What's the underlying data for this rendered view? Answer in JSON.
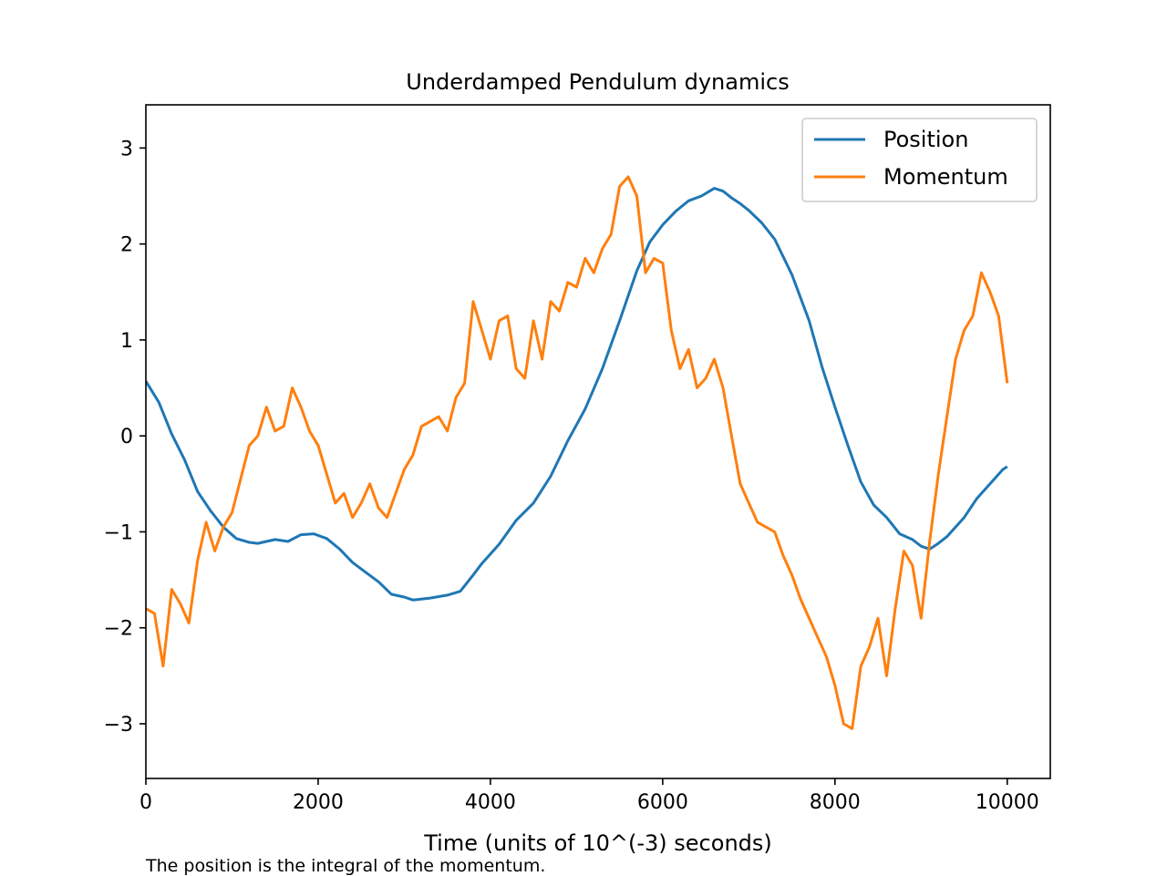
{
  "caption": "The position is the integral of the momentum.",
  "chart_data": {
    "type": "line",
    "title": "Underdamped Pendulum dynamics",
    "xlabel": "Time (units of 10^(-3) seconds)",
    "ylabel": "",
    "xlim": [
      0,
      10500
    ],
    "ylim": [
      -3.57,
      3.45
    ],
    "xticks": [
      0,
      2000,
      4000,
      6000,
      8000,
      10000
    ],
    "xtick_labels": [
      "0",
      "2000",
      "4000",
      "6000",
      "8000",
      "10000"
    ],
    "yticks": [
      -3,
      -2,
      -1,
      0,
      1,
      2,
      3
    ],
    "ytick_labels": [
      "−3",
      "−2",
      "−1",
      "0",
      "1",
      "2",
      "3"
    ],
    "grid": false,
    "legend_position": "top-right",
    "series": [
      {
        "name": "Position",
        "color": "#1f77b4",
        "x": [
          0,
          150,
          300,
          450,
          600,
          750,
          900,
          1050,
          1200,
          1300,
          1500,
          1650,
          1800,
          1950,
          2100,
          2250,
          2400,
          2550,
          2700,
          2850,
          3000,
          3100,
          3300,
          3500,
          3650,
          3800,
          3900,
          4100,
          4300,
          4500,
          4700,
          4900,
          5100,
          5300,
          5500,
          5700,
          5850,
          6000,
          6150,
          6300,
          6450,
          6600,
          6700,
          6800,
          6900,
          7000,
          7150,
          7300,
          7500,
          7700,
          7850,
          8000,
          8150,
          8300,
          8450,
          8600,
          8750,
          8900,
          9000,
          9100,
          9200,
          9300,
          9500,
          9650,
          9800,
          9950,
          10000
        ],
        "y": [
          0.57,
          0.35,
          0.02,
          -0.25,
          -0.58,
          -0.78,
          -0.95,
          -1.07,
          -1.11,
          -1.12,
          -1.08,
          -1.1,
          -1.03,
          -1.02,
          -1.07,
          -1.18,
          -1.32,
          -1.42,
          -1.52,
          -1.65,
          -1.68,
          -1.71,
          -1.69,
          -1.66,
          -1.62,
          -1.45,
          -1.33,
          -1.13,
          -0.88,
          -0.7,
          -0.42,
          -0.05,
          0.28,
          0.7,
          1.2,
          1.72,
          2.02,
          2.2,
          2.34,
          2.45,
          2.5,
          2.58,
          2.55,
          2.48,
          2.42,
          2.35,
          2.22,
          2.05,
          1.68,
          1.2,
          0.72,
          0.3,
          -0.1,
          -0.48,
          -0.72,
          -0.85,
          -1.02,
          -1.08,
          -1.15,
          -1.18,
          -1.12,
          -1.05,
          -0.85,
          -0.65,
          -0.5,
          -0.35,
          -0.32
        ]
      },
      {
        "name": "Momentum",
        "color": "#ff7f0e",
        "x": [
          0,
          100,
          200,
          300,
          400,
          500,
          600,
          700,
          800,
          900,
          1000,
          1100,
          1200,
          1300,
          1400,
          1500,
          1600,
          1700,
          1800,
          1900,
          2000,
          2100,
          2200,
          2300,
          2400,
          2500,
          2600,
          2700,
          2800,
          2900,
          3000,
          3100,
          3200,
          3300,
          3400,
          3500,
          3600,
          3700,
          3800,
          3900,
          4000,
          4100,
          4200,
          4300,
          4400,
          4500,
          4600,
          4700,
          4800,
          4900,
          5000,
          5100,
          5200,
          5300,
          5400,
          5500,
          5600,
          5700,
          5800,
          5900,
          6000,
          6100,
          6200,
          6300,
          6400,
          6500,
          6600,
          6700,
          6800,
          6900,
          7000,
          7100,
          7200,
          7300,
          7400,
          7500,
          7600,
          7700,
          7800,
          7900,
          8000,
          8100,
          8200,
          8300,
          8400,
          8500,
          8600,
          8700,
          8800,
          8900,
          9000,
          9100,
          9200,
          9300,
          9400,
          9500,
          9600,
          9700,
          9800,
          9900,
          10000
        ],
        "y": [
          -1.8,
          -1.85,
          -2.4,
          -1.6,
          -1.75,
          -1.95,
          -1.3,
          -0.9,
          -1.2,
          -0.95,
          -0.8,
          -0.45,
          -0.1,
          0.0,
          0.3,
          0.05,
          0.1,
          0.5,
          0.3,
          0.05,
          -0.1,
          -0.4,
          -0.7,
          -0.6,
          -0.85,
          -0.7,
          -0.5,
          -0.75,
          -0.85,
          -0.6,
          -0.35,
          -0.2,
          0.1,
          0.15,
          0.2,
          0.05,
          0.4,
          0.55,
          1.4,
          1.1,
          0.8,
          1.2,
          1.25,
          0.7,
          0.6,
          1.2,
          0.8,
          1.4,
          1.3,
          1.6,
          1.55,
          1.85,
          1.7,
          1.95,
          2.1,
          2.6,
          2.7,
          2.5,
          1.7,
          1.85,
          1.8,
          1.1,
          0.7,
          0.9,
          0.5,
          0.6,
          0.8,
          0.5,
          0.0,
          -0.5,
          -0.7,
          -0.9,
          -0.95,
          -1.0,
          -1.25,
          -1.45,
          -1.7,
          -1.9,
          -2.1,
          -2.3,
          -2.6,
          -3.0,
          -3.05,
          -2.4,
          -2.2,
          -1.9,
          -2.5,
          -1.8,
          -1.2,
          -1.35,
          -1.9,
          -1.1,
          -0.4,
          0.2,
          0.8,
          1.1,
          1.25,
          1.7,
          1.5,
          1.25,
          0.55
        ]
      }
    ]
  }
}
